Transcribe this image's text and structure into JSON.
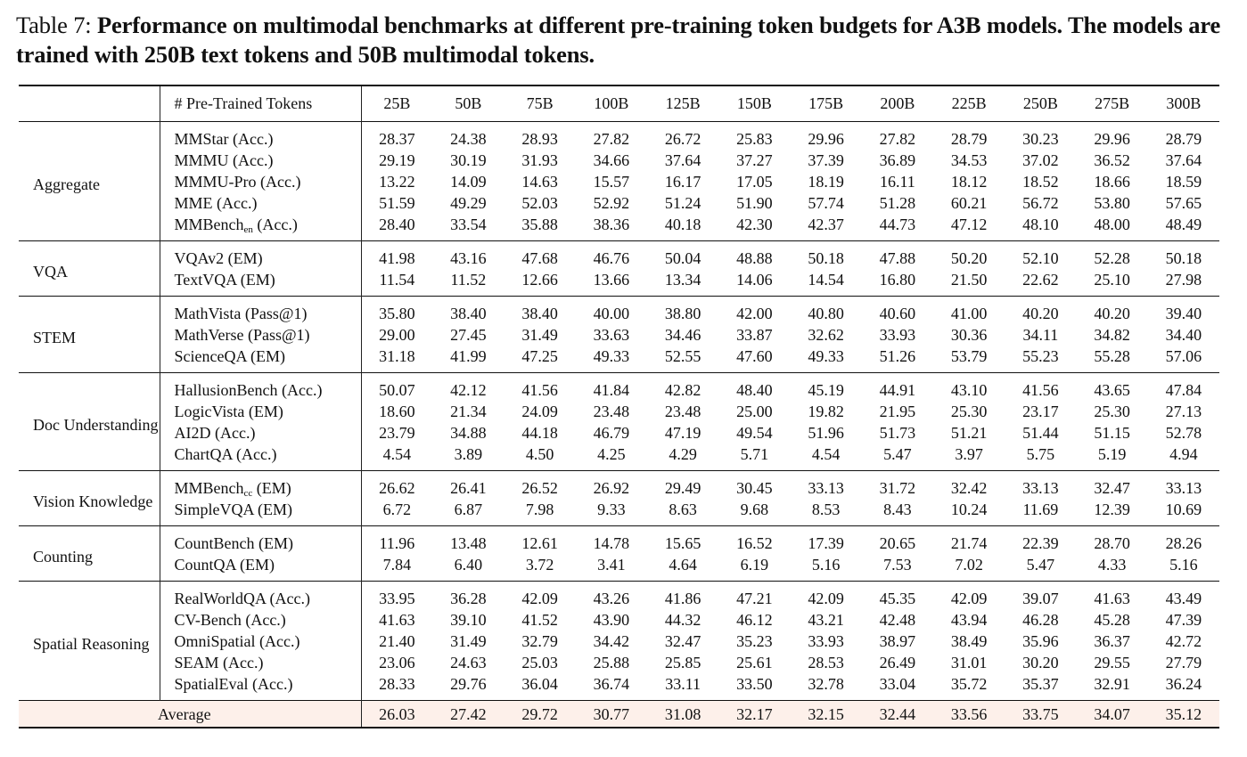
{
  "caption": {
    "label": "Table 7: ",
    "text": "Performance on multimodal benchmarks at different pre-training token budgets for A3B models. The models are trained with 250B text tokens and 50B multimodal tokens."
  },
  "table": {
    "header_label": "# Pre-Trained Tokens",
    "columns": [
      "25B",
      "50B",
      "75B",
      "100B",
      "125B",
      "150B",
      "175B",
      "200B",
      "225B",
      "250B",
      "275B",
      "300B"
    ],
    "groups": [
      {
        "category": "Aggregate",
        "rows": [
          {
            "bench": "MMStar (Acc.)",
            "values": [
              "28.37",
              "24.38",
              "28.93",
              "27.82",
              "26.72",
              "25.83",
              "29.96",
              "27.82",
              "28.79",
              "30.23",
              "29.96",
              "28.79"
            ]
          },
          {
            "bench": "MMMU (Acc.)",
            "values": [
              "29.19",
              "30.19",
              "31.93",
              "34.66",
              "37.64",
              "37.27",
              "37.39",
              "36.89",
              "34.53",
              "37.02",
              "36.52",
              "37.64"
            ]
          },
          {
            "bench": "MMMU-Pro (Acc.)",
            "values": [
              "13.22",
              "14.09",
              "14.63",
              "15.57",
              "16.17",
              "17.05",
              "18.19",
              "16.11",
              "18.12",
              "18.52",
              "18.66",
              "18.59"
            ]
          },
          {
            "bench": "MME (Acc.)",
            "values": [
              "51.59",
              "49.29",
              "52.03",
              "52.92",
              "51.24",
              "51.90",
              "57.74",
              "51.28",
              "60.21",
              "56.72",
              "53.80",
              "57.65"
            ]
          },
          {
            "bench": "MMBench",
            "sub": "en",
            "suffix": " (Acc.)",
            "values": [
              "28.40",
              "33.54",
              "35.88",
              "38.36",
              "40.18",
              "42.30",
              "42.37",
              "44.73",
              "47.12",
              "48.10",
              "48.00",
              "48.49"
            ]
          }
        ]
      },
      {
        "category": "VQA",
        "rows": [
          {
            "bench": "VQAv2 (EM)",
            "values": [
              "41.98",
              "43.16",
              "47.68",
              "46.76",
              "50.04",
              "48.88",
              "50.18",
              "47.88",
              "50.20",
              "52.10",
              "52.28",
              "50.18"
            ]
          },
          {
            "bench": "TextVQA (EM)",
            "values": [
              "11.54",
              "11.52",
              "12.66",
              "13.66",
              "13.34",
              "14.06",
              "14.54",
              "16.80",
              "21.50",
              "22.62",
              "25.10",
              "27.98"
            ]
          }
        ]
      },
      {
        "category": "STEM",
        "rows": [
          {
            "bench": "MathVista (Pass@1)",
            "values": [
              "35.80",
              "38.40",
              "38.40",
              "40.00",
              "38.80",
              "42.00",
              "40.80",
              "40.60",
              "41.00",
              "40.20",
              "40.20",
              "39.40"
            ]
          },
          {
            "bench": "MathVerse (Pass@1)",
            "values": [
              "29.00",
              "27.45",
              "31.49",
              "33.63",
              "34.46",
              "33.87",
              "32.62",
              "33.93",
              "30.36",
              "34.11",
              "34.82",
              "34.40"
            ]
          },
          {
            "bench": "ScienceQA (EM)",
            "values": [
              "31.18",
              "41.99",
              "47.25",
              "49.33",
              "52.55",
              "47.60",
              "49.33",
              "51.26",
              "53.79",
              "55.23",
              "55.28",
              "57.06"
            ]
          }
        ]
      },
      {
        "category": "Doc Understanding",
        "rows": [
          {
            "bench": "HallusionBench (Acc.)",
            "values": [
              "50.07",
              "42.12",
              "41.56",
              "41.84",
              "42.82",
              "48.40",
              "45.19",
              "44.91",
              "43.10",
              "41.56",
              "43.65",
              "47.84"
            ]
          },
          {
            "bench": "LogicVista (EM)",
            "values": [
              "18.60",
              "21.34",
              "24.09",
              "23.48",
              "23.48",
              "25.00",
              "19.82",
              "21.95",
              "25.30",
              "23.17",
              "25.30",
              "27.13"
            ]
          },
          {
            "bench": "AI2D (Acc.)",
            "values": [
              "23.79",
              "34.88",
              "44.18",
              "46.79",
              "47.19",
              "49.54",
              "51.96",
              "51.73",
              "51.21",
              "51.44",
              "51.15",
              "52.78"
            ]
          },
          {
            "bench": "ChartQA (Acc.)",
            "values": [
              "4.54",
              "3.89",
              "4.50",
              "4.25",
              "4.29",
              "5.71",
              "4.54",
              "5.47",
              "3.97",
              "5.75",
              "5.19",
              "4.94"
            ]
          }
        ]
      },
      {
        "category": "Vision Knowledge",
        "rows": [
          {
            "bench": "MMBench",
            "sub": "cc",
            "suffix": " (EM)",
            "values": [
              "26.62",
              "26.41",
              "26.52",
              "26.92",
              "29.49",
              "30.45",
              "33.13",
              "31.72",
              "32.42",
              "33.13",
              "32.47",
              "33.13"
            ]
          },
          {
            "bench": "SimpleVQA (EM)",
            "values": [
              "6.72",
              "6.87",
              "7.98",
              "9.33",
              "8.63",
              "9.68",
              "8.53",
              "8.43",
              "10.24",
              "11.69",
              "12.39",
              "10.69"
            ]
          }
        ]
      },
      {
        "category": "Counting",
        "rows": [
          {
            "bench": "CountBench (EM)",
            "values": [
              "11.96",
              "13.48",
              "12.61",
              "14.78",
              "15.65",
              "16.52",
              "17.39",
              "20.65",
              "21.74",
              "22.39",
              "28.70",
              "28.26"
            ]
          },
          {
            "bench": "CountQA (EM)",
            "values": [
              "7.84",
              "6.40",
              "3.72",
              "3.41",
              "4.64",
              "6.19",
              "5.16",
              "7.53",
              "7.02",
              "5.47",
              "4.33",
              "5.16"
            ]
          }
        ]
      },
      {
        "category": "Spatial Reasoning",
        "rows": [
          {
            "bench": "RealWorldQA (Acc.)",
            "values": [
              "33.95",
              "36.28",
              "42.09",
              "43.26",
              "41.86",
              "47.21",
              "42.09",
              "45.35",
              "42.09",
              "39.07",
              "41.63",
              "43.49"
            ]
          },
          {
            "bench": "CV-Bench (Acc.)",
            "values": [
              "41.63",
              "39.10",
              "41.52",
              "43.90",
              "44.32",
              "46.12",
              "43.21",
              "42.48",
              "43.94",
              "46.28",
              "45.28",
              "47.39"
            ]
          },
          {
            "bench": "OmniSpatial (Acc.)",
            "values": [
              "21.40",
              "31.49",
              "32.79",
              "34.42",
              "32.47",
              "35.23",
              "33.93",
              "38.97",
              "38.49",
              "35.96",
              "36.37",
              "42.72"
            ]
          },
          {
            "bench": "SEAM (Acc.)",
            "values": [
              "23.06",
              "24.63",
              "25.03",
              "25.88",
              "25.85",
              "25.61",
              "28.53",
              "26.49",
              "31.01",
              "30.20",
              "29.55",
              "27.79"
            ]
          },
          {
            "bench": "SpatialEval (Acc.)",
            "values": [
              "28.33",
              "29.76",
              "36.04",
              "36.74",
              "33.11",
              "33.50",
              "32.78",
              "33.04",
              "35.72",
              "35.37",
              "32.91",
              "36.24"
            ]
          }
        ]
      }
    ],
    "average": {
      "label": "Average",
      "values": [
        "26.03",
        "27.42",
        "29.72",
        "30.77",
        "31.08",
        "32.17",
        "32.15",
        "32.44",
        "33.56",
        "33.75",
        "34.07",
        "35.12"
      ]
    }
  }
}
